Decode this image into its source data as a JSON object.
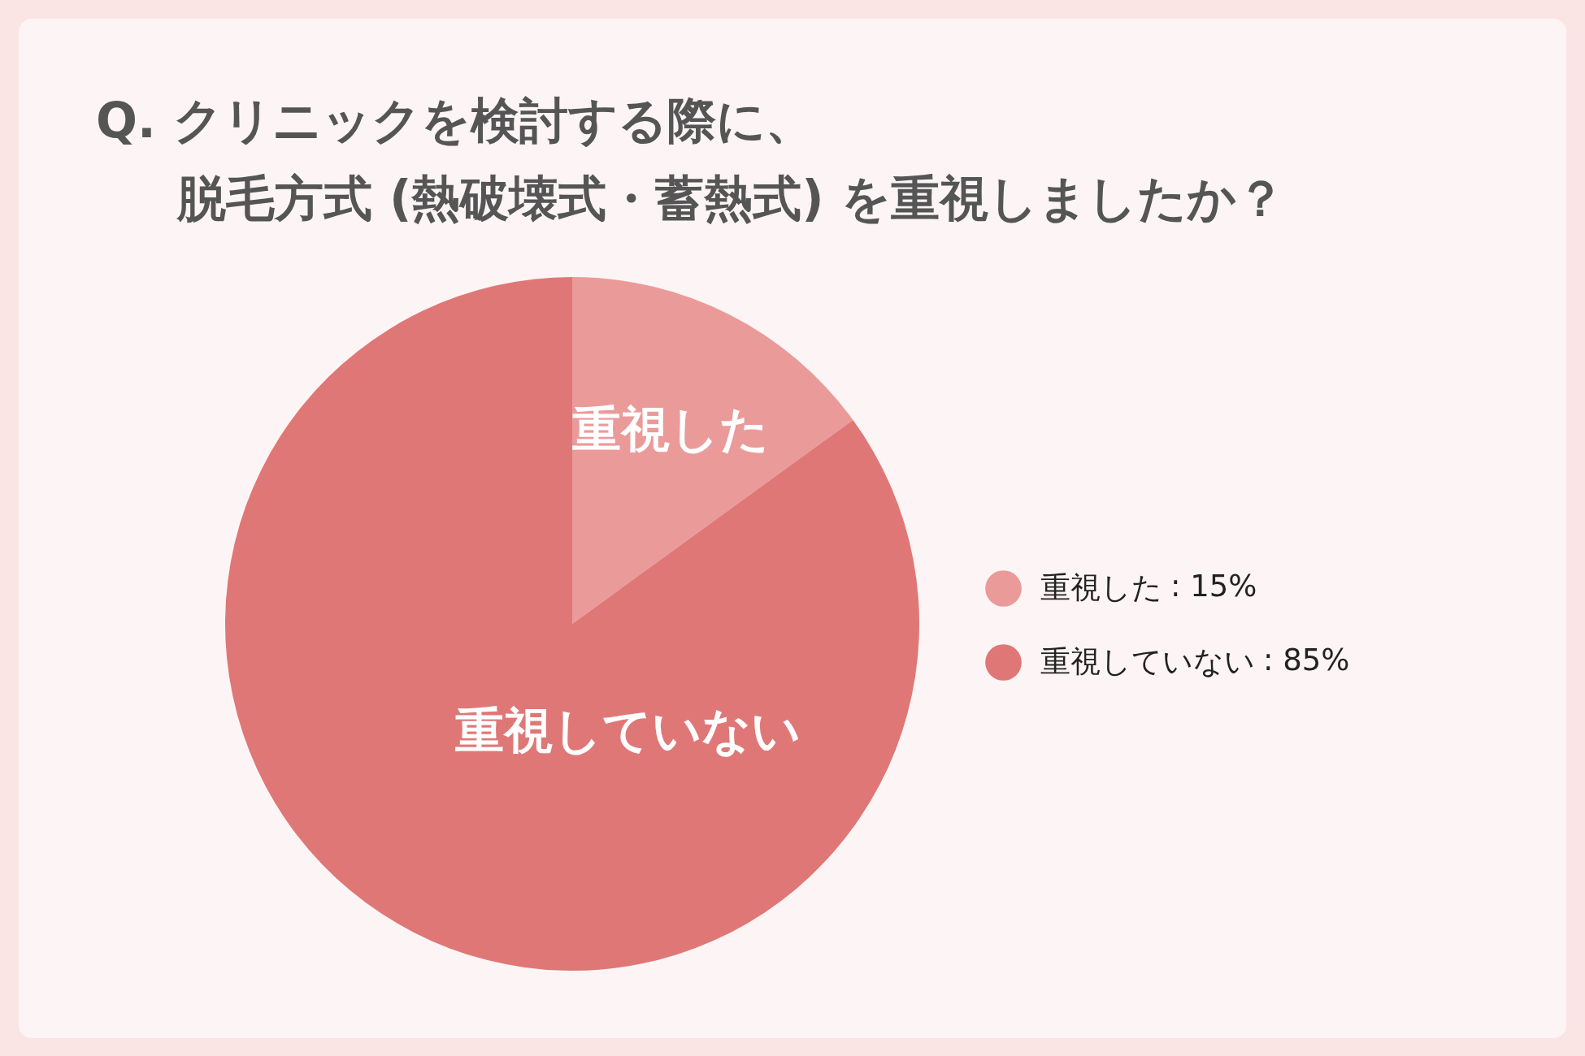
{
  "chart_data": {
    "type": "pie",
    "title": "Q. クリニックを検討する際に、",
    "subtitle": "脱毛方式 (熱破壊式・蓄熱式) を重視しましたか？",
    "categories": [
      "重視した",
      "重視していない"
    ],
    "values": [
      15,
      85
    ],
    "value_labels": [
      ": 15%",
      ": 85%"
    ],
    "colors": [
      "#eb9a9a",
      "#e07777"
    ],
    "legend": "right"
  }
}
